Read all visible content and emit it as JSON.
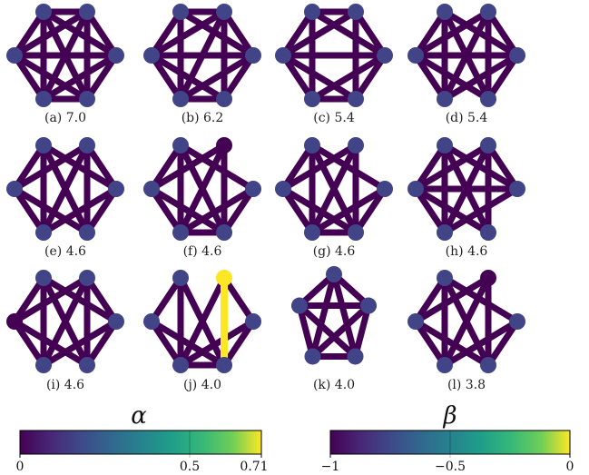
{
  "graphs": [
    {
      "caption": "(a) 7.0"
    },
    {
      "caption": "(b) 6.2"
    },
    {
      "caption": "(c) 5.4"
    },
    {
      "caption": "(d) 5.4"
    },
    {
      "caption": "(e) 4.6"
    },
    {
      "caption": "(f) 4.6"
    },
    {
      "caption": "(g) 4.6"
    },
    {
      "caption": "(h) 4.6"
    },
    {
      "caption": "(i) 4.6"
    },
    {
      "caption": "(j) 4.0"
    },
    {
      "caption": "(k) 4.0"
    },
    {
      "caption": "(l) 3.8"
    }
  ],
  "colorbars": {
    "alpha": {
      "title": "α",
      "ticks": [
        "0",
        "0.5",
        "0.71"
      ]
    },
    "beta": {
      "title": "β",
      "ticks": [
        "−1",
        "−0.5",
        "0"
      ]
    }
  },
  "colors": {
    "edge": "#440154",
    "node": "#414487",
    "highlight": "#fde725"
  }
}
